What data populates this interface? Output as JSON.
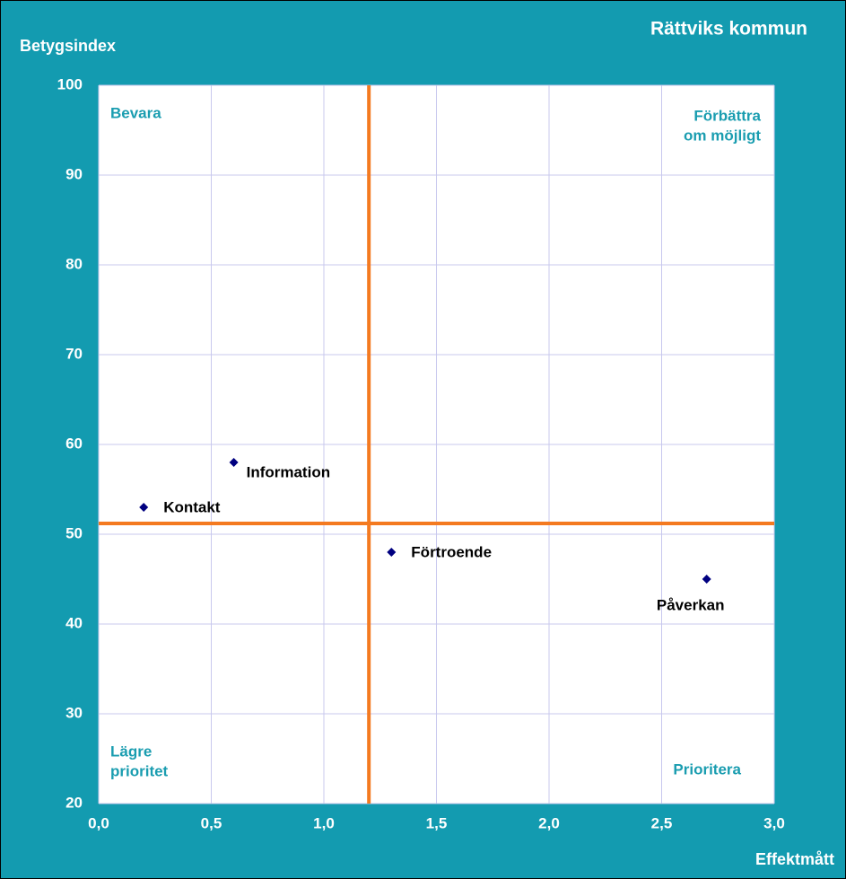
{
  "chart_data": {
    "type": "scatter",
    "title": "Rättviks kommun",
    "y_label": "Betygsindex",
    "x_label": "Effektmått",
    "categories": [
      "Kontakt",
      "Information",
      "Förtroende",
      "Påverkan"
    ],
    "x": [
      0.2,
      0.6,
      1.3,
      2.7
    ],
    "values": [
      53,
      58,
      48,
      45
    ],
    "color": "#000080",
    "xlim": [
      0,
      3
    ],
    "ylim": [
      20,
      100
    ],
    "xticks": [
      {
        "value": 0,
        "label": "0,0"
      },
      {
        "value": 0.5,
        "label": "0,5"
      },
      {
        "value": 1,
        "label": "1,0"
      },
      {
        "value": 1.5,
        "label": "1,5"
      },
      {
        "value": 2,
        "label": "2,0"
      },
      {
        "value": 2.5,
        "label": "2,5"
      },
      {
        "value": 3,
        "label": "3,0"
      }
    ],
    "yticks": [
      20,
      30,
      40,
      50,
      60,
      70,
      80,
      90,
      100
    ],
    "grid": true,
    "xline": 1.2,
    "yline": 51.2,
    "line_color": "#f47a20",
    "quadrants": {
      "top_left": [
        "Bevara"
      ],
      "top_right": [
        "Förbättra",
        "om möjligt"
      ],
      "bottom_left": [
        "Lägre",
        "prioritet"
      ],
      "bottom_right": [
        "Prioritera"
      ]
    }
  }
}
